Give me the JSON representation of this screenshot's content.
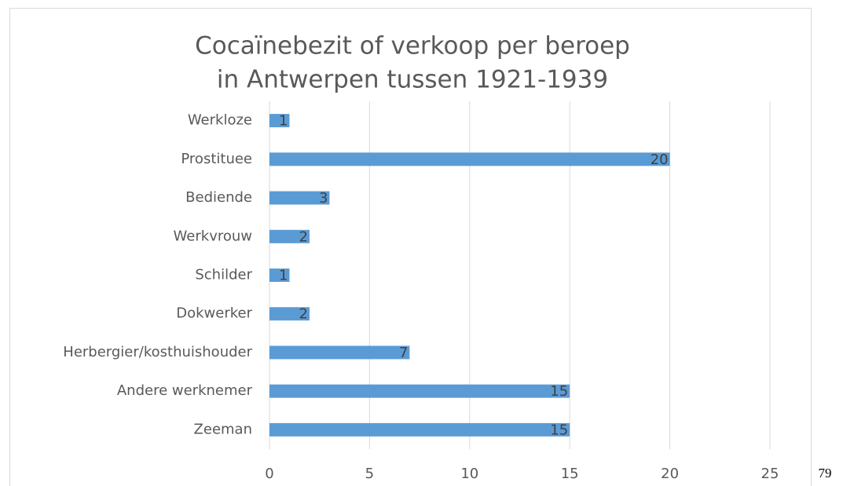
{
  "chart_data": {
    "type": "hbar",
    "title": [
      "Cocaïnebezit of verkoop per beroep",
      "in Antwerpen tussen 1921-1939"
    ],
    "categories": [
      "Werkloze",
      "Prostituee",
      "Bediende",
      "Werkvrouw",
      "Schilder",
      "Dokwerker",
      "Herbergier/kosthuishouder",
      "Andere werknemer",
      "Zeeman"
    ],
    "values": [
      1,
      20,
      3,
      2,
      1,
      2,
      7,
      15,
      15
    ],
    "color": "#5b9bd5",
    "xlim": [
      0,
      25
    ],
    "xticks": [
      0,
      5,
      10,
      15,
      20,
      25
    ],
    "grid": true
  },
  "page_number": "79"
}
